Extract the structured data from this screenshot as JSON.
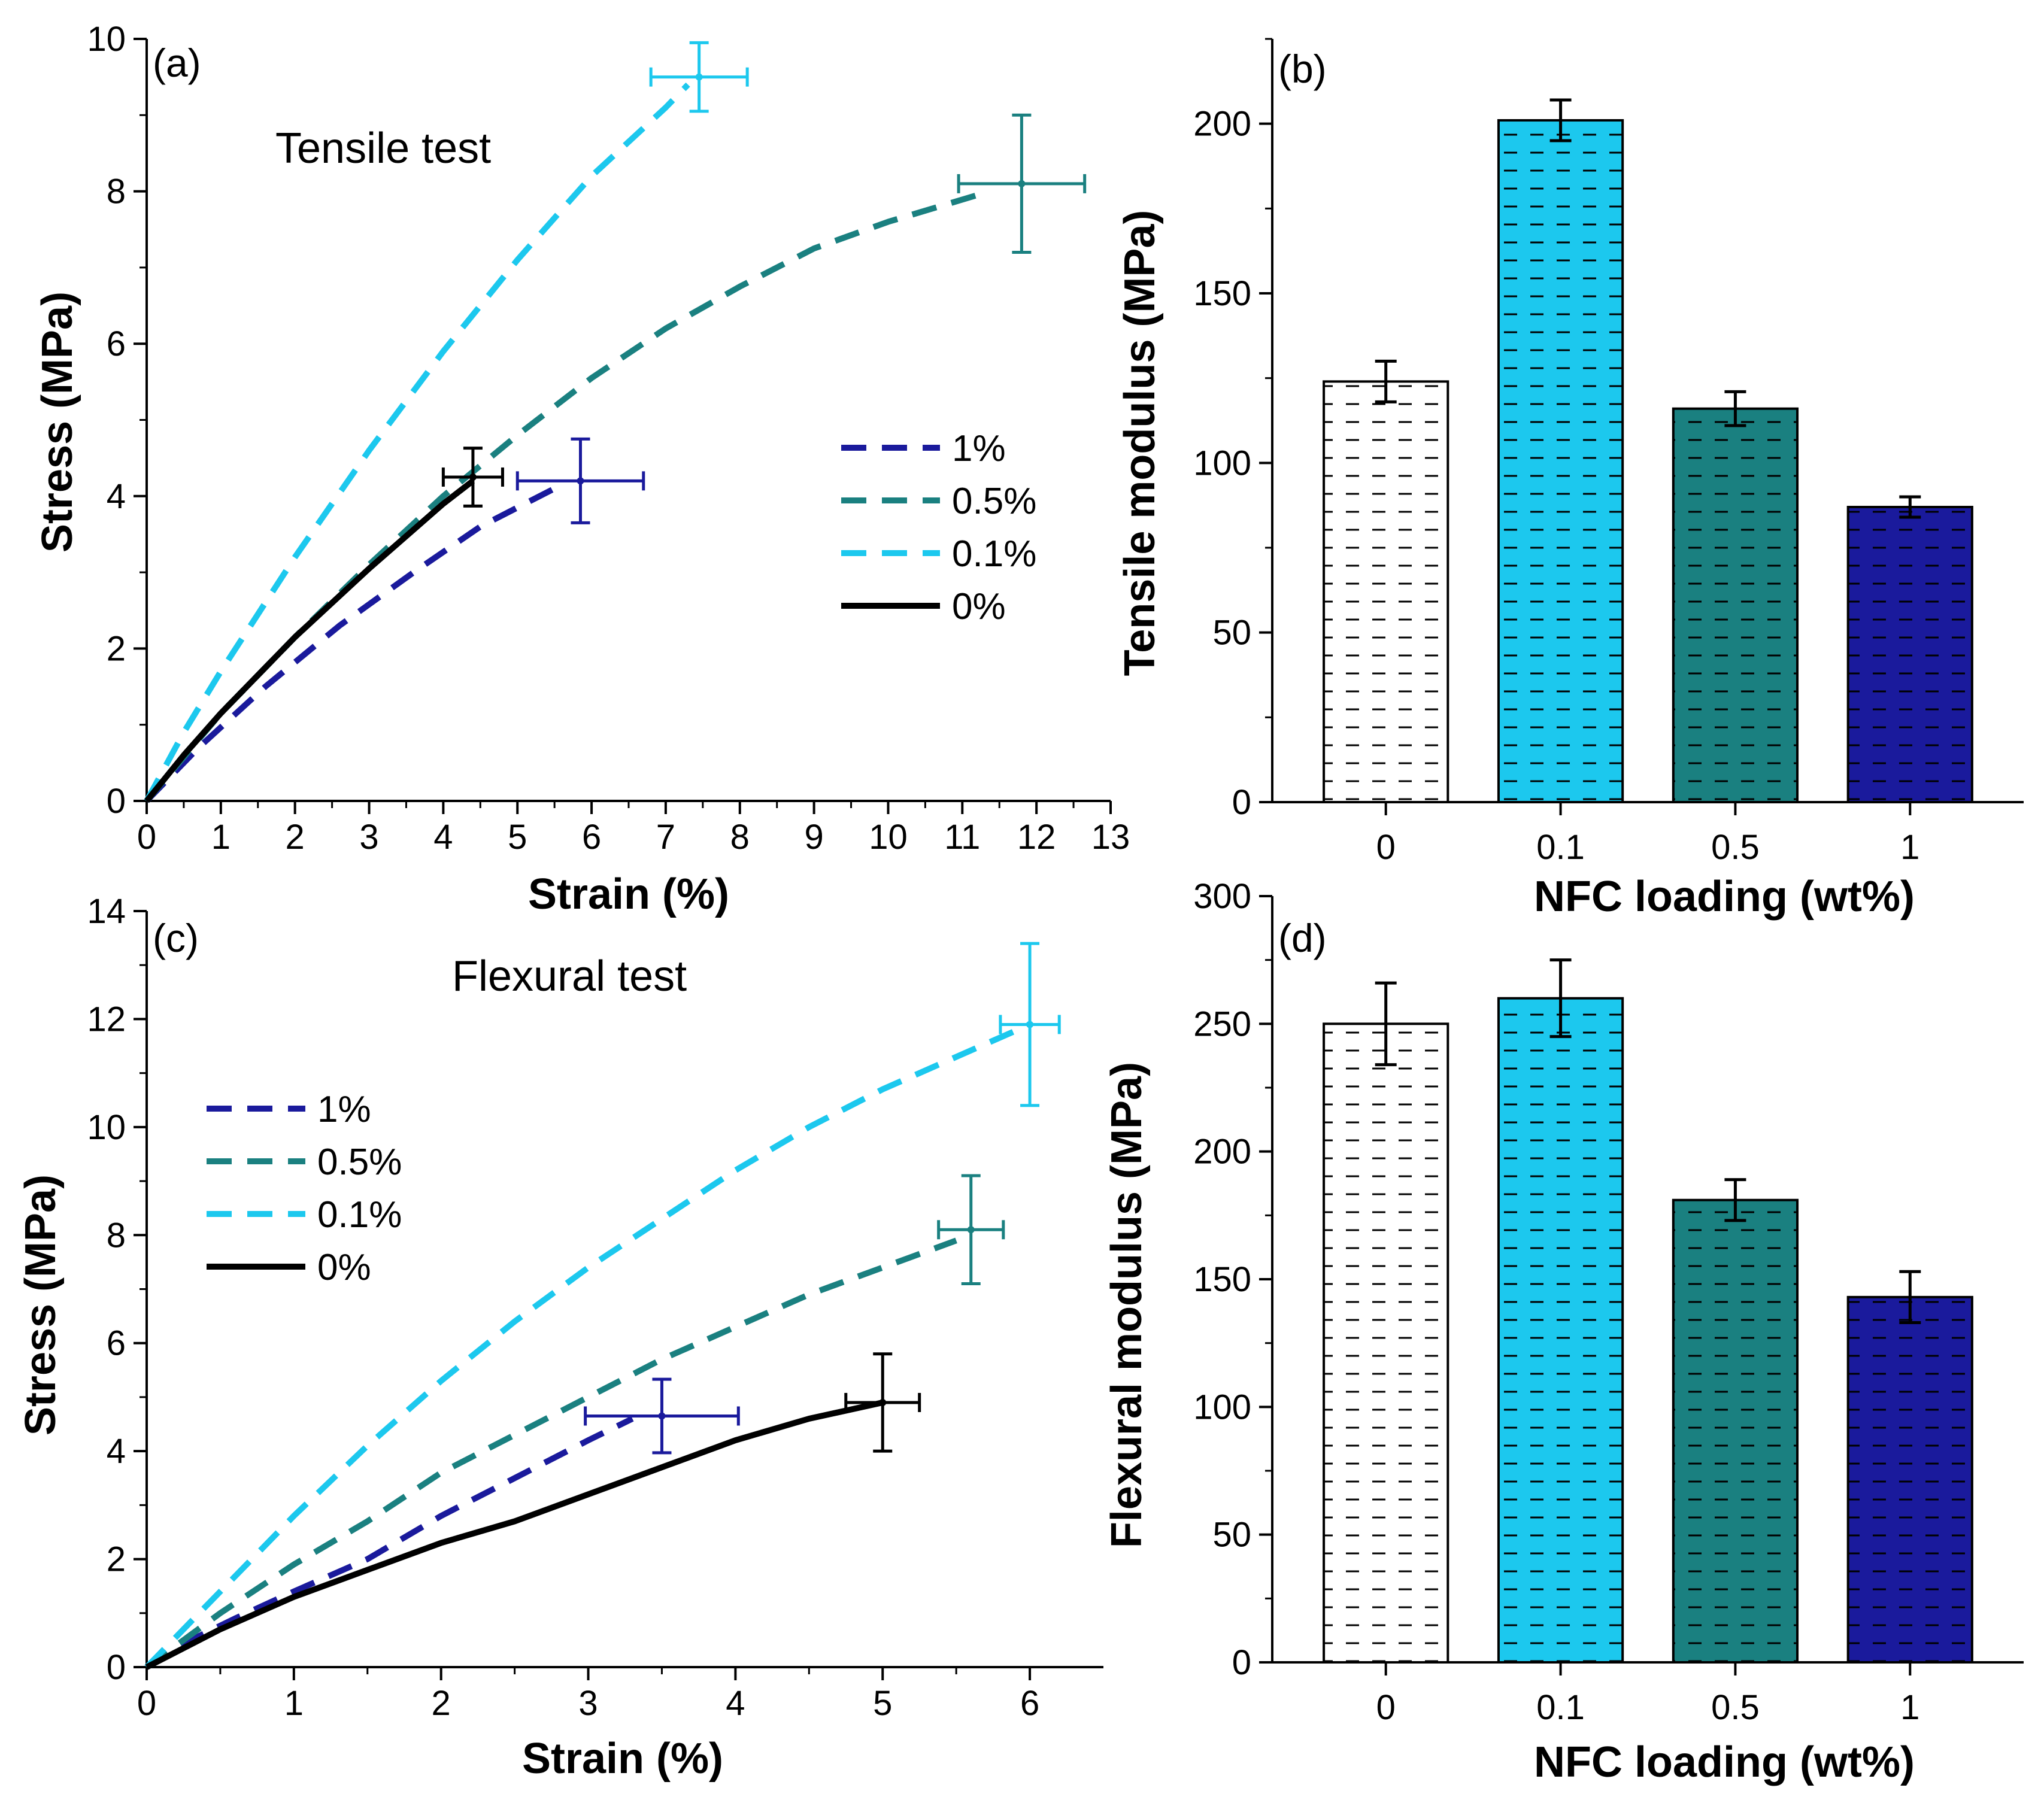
{
  "chart_data": [
    {
      "panel": "(a)",
      "type": "line",
      "annotation": "Tensile test",
      "xlabel": "Strain (%)",
      "ylabel": "Stress (MPa)",
      "xlim": [
        0,
        13
      ],
      "ylim": [
        0,
        10
      ],
      "xticks": [
        0,
        1,
        2,
        3,
        4,
        5,
        6,
        7,
        8,
        9,
        10,
        11,
        12,
        13
      ],
      "yticks": [
        0,
        2,
        4,
        6,
        8,
        10
      ],
      "legend_position": "right",
      "series": [
        {
          "name": "1%",
          "color": "#1a1a9c",
          "dash": "dashed",
          "x": [
            0,
            0.7,
            1.6,
            2.6,
            3.6,
            4.5,
            5.5
          ],
          "y": [
            0,
            0.7,
            1.5,
            2.3,
            3.0,
            3.6,
            4.1
          ],
          "err_point": [
            5.85,
            4.2
          ],
          "xerr": 0.85,
          "yerr": 0.55
        },
        {
          "name": "0.5%",
          "color": "#1a8080",
          "dash": "dashed",
          "x": [
            0,
            1,
            2,
            3,
            4,
            5,
            6,
            7,
            8,
            9,
            10,
            11.2
          ],
          "y": [
            0,
            1.15,
            2.15,
            3.1,
            4.0,
            4.8,
            5.55,
            6.2,
            6.75,
            7.25,
            7.6,
            7.95
          ],
          "err_point": [
            11.8,
            8.1
          ],
          "xerr": 0.85,
          "yerr": 0.9
        },
        {
          "name": "0.1%",
          "color": "#1cc8ee",
          "dash": "dashed",
          "x": [
            0,
            0.5,
            1,
            2,
            3,
            4,
            5,
            6,
            7,
            7.3
          ],
          "y": [
            0,
            0.9,
            1.7,
            3.2,
            4.6,
            5.9,
            7.1,
            8.2,
            9.1,
            9.4
          ],
          "err_point": [
            7.45,
            9.5
          ],
          "xerr": 0.65,
          "yerr": 0.45
        },
        {
          "name": "0%",
          "color": "#000000",
          "dash": "solid",
          "x": [
            0,
            0.5,
            1,
            2,
            3,
            4,
            4.4
          ],
          "y": [
            0,
            0.6,
            1.15,
            2.15,
            3.05,
            3.9,
            4.2
          ],
          "err_point": [
            4.4,
            4.25
          ],
          "xerr": 0.4,
          "yerr": 0.38
        }
      ]
    },
    {
      "panel": "(b)",
      "type": "bar",
      "xlabel": "NFC loading (wt%)",
      "ylabel": "Tensile modulus (MPa)",
      "ylim": [
        0,
        225
      ],
      "yticks": [
        0,
        50,
        100,
        150,
        200
      ],
      "categories": [
        "0",
        "0.1",
        "0.5",
        "1"
      ],
      "values": [
        124,
        201,
        116,
        87
      ],
      "errors": [
        6,
        6,
        5,
        3
      ],
      "colors": [
        "#ffffff",
        "#1cc8ee",
        "#1a8080",
        "#1a1a9c"
      ]
    },
    {
      "panel": "(c)",
      "type": "line",
      "annotation": "Flexural test",
      "xlabel": "Strain (%)",
      "ylabel": "Stress (MPa)",
      "xlim": [
        0,
        6.5
      ],
      "ylim": [
        0,
        14
      ],
      "xticks": [
        0,
        1,
        2,
        3,
        4,
        5,
        6
      ],
      "yticks": [
        0,
        2,
        4,
        6,
        8,
        10,
        12,
        14
      ],
      "legend_position": "top-left",
      "series": [
        {
          "name": "1%",
          "color": "#1a1a9c",
          "dash": "dashed",
          "x": [
            0,
            0.3,
            0.6,
            1,
            1.5,
            2,
            2.5,
            3,
            3.3
          ],
          "y": [
            0,
            0.5,
            0.9,
            1.4,
            2.0,
            2.8,
            3.5,
            4.2,
            4.6
          ],
          "err_point": [
            3.5,
            4.65
          ],
          "xerr": 0.52,
          "yerr": 0.68
        },
        {
          "name": "0.5%",
          "color": "#1a8080",
          "dash": "dashed",
          "x": [
            0,
            0.5,
            1,
            1.5,
            2,
            2.5,
            3,
            3.5,
            4,
            4.5,
            5,
            5.5
          ],
          "y": [
            0,
            1.0,
            1.9,
            2.7,
            3.6,
            4.3,
            5.0,
            5.7,
            6.3,
            6.9,
            7.4,
            7.9
          ],
          "err_point": [
            5.6,
            8.1
          ],
          "xerr": 0.22,
          "yerr": 1.0
        },
        {
          "name": "0.1%",
          "color": "#1cc8ee",
          "dash": "dashed",
          "x": [
            0,
            0.5,
            1,
            1.5,
            2,
            2.5,
            3,
            3.5,
            4,
            4.5,
            5,
            5.5,
            6
          ],
          "y": [
            0,
            1.4,
            2.8,
            4.1,
            5.3,
            6.4,
            7.4,
            8.3,
            9.2,
            10.0,
            10.7,
            11.3,
            11.9
          ],
          "err_point": [
            6.0,
            11.9
          ],
          "xerr": 0.2,
          "yerr": 1.5
        },
        {
          "name": "0%",
          "color": "#000000",
          "dash": "solid",
          "x": [
            0,
            0.5,
            1,
            1.5,
            2,
            2.5,
            3,
            3.5,
            4,
            4.5,
            5
          ],
          "y": [
            0,
            0.7,
            1.3,
            1.8,
            2.3,
            2.7,
            3.2,
            3.7,
            4.2,
            4.6,
            4.9
          ],
          "err_point": [
            5.0,
            4.9
          ],
          "xerr": 0.25,
          "yerr": 0.9
        }
      ]
    },
    {
      "panel": "(d)",
      "type": "bar",
      "xlabel": "NFC loading (wt%)",
      "ylabel": "Flexural modulus (MPa)",
      "ylim": [
        0,
        300
      ],
      "yticks": [
        0,
        50,
        100,
        150,
        200,
        250,
        300
      ],
      "categories": [
        "0",
        "0.1",
        "0.5",
        "1"
      ],
      "values": [
        250,
        260,
        181,
        143
      ],
      "errors": [
        16,
        15,
        8,
        10
      ],
      "colors": [
        "#ffffff",
        "#1cc8ee",
        "#1a8080",
        "#1a1a9c"
      ]
    }
  ]
}
